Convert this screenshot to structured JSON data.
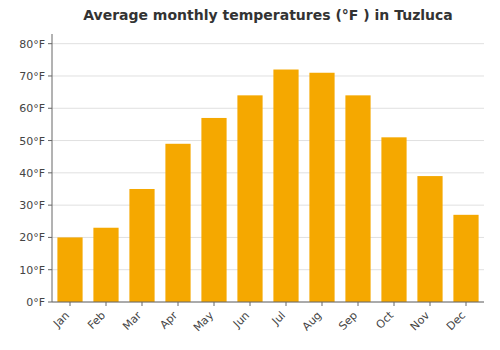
{
  "chart_data": {
    "type": "bar",
    "title": "Average monthly temperatures (°F ) in Tuzluca",
    "categories": [
      "Jan",
      "Feb",
      "Mar",
      "Apr",
      "May",
      "Jun",
      "Jul",
      "Aug",
      "Sep",
      "Oct",
      "Nov",
      "Dec"
    ],
    "values": [
      20,
      23,
      35,
      49,
      57,
      64,
      72,
      71,
      64,
      51,
      39,
      27
    ],
    "color": "#F5A800",
    "ylim": [
      0,
      83
    ],
    "yticks": [
      {
        "value": 0,
        "label": "0°F"
      },
      {
        "value": 10,
        "label": "10°F"
      },
      {
        "value": 20,
        "label": "20°F"
      },
      {
        "value": 30,
        "label": "30°F"
      },
      {
        "value": 40,
        "label": "40°F"
      },
      {
        "value": 50,
        "label": "50°F"
      },
      {
        "value": 60,
        "label": "60°F"
      },
      {
        "value": 70,
        "label": "70°F"
      },
      {
        "value": 80,
        "label": "80°F"
      }
    ],
    "grid": true
  }
}
